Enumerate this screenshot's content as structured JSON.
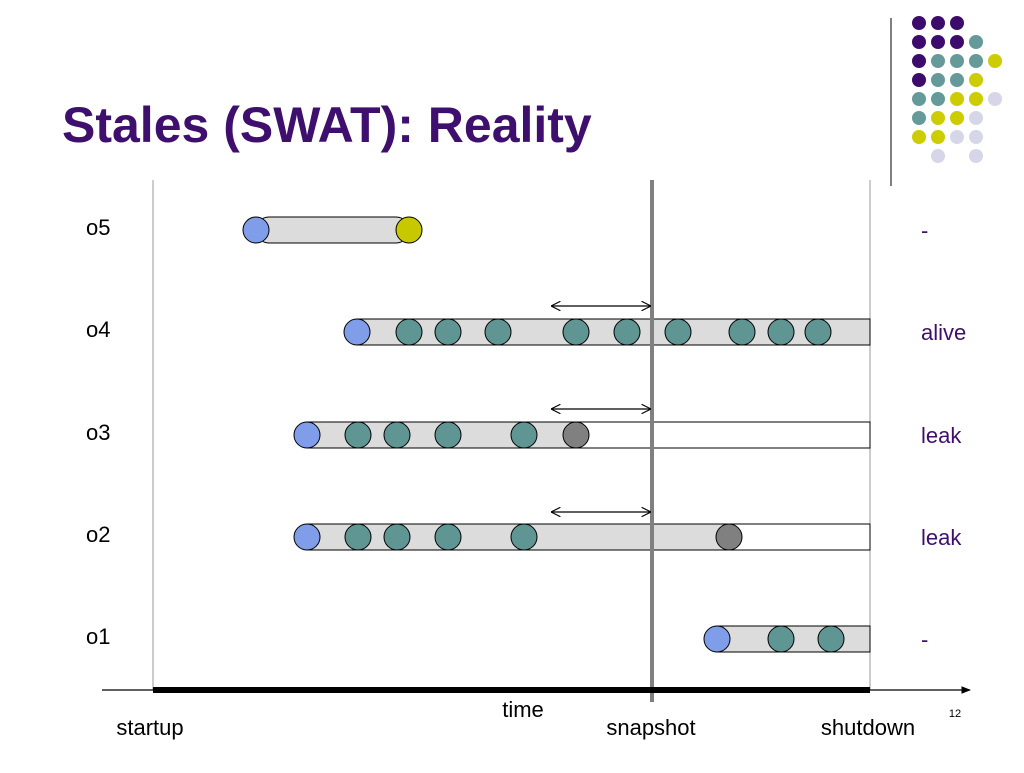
{
  "title": "Stales (SWAT): Reality",
  "rows": [
    {
      "label": "o5",
      "status": "-"
    },
    {
      "label": "o4",
      "status": "alive"
    },
    {
      "label": "o3",
      "status": "leak"
    },
    {
      "label": "o2",
      "status": "leak"
    },
    {
      "label": "o1",
      "status": "-"
    }
  ],
  "axis": {
    "label": "time",
    "markers": [
      "startup",
      "snapshot",
      "shutdown"
    ]
  },
  "page_number": "12"
}
